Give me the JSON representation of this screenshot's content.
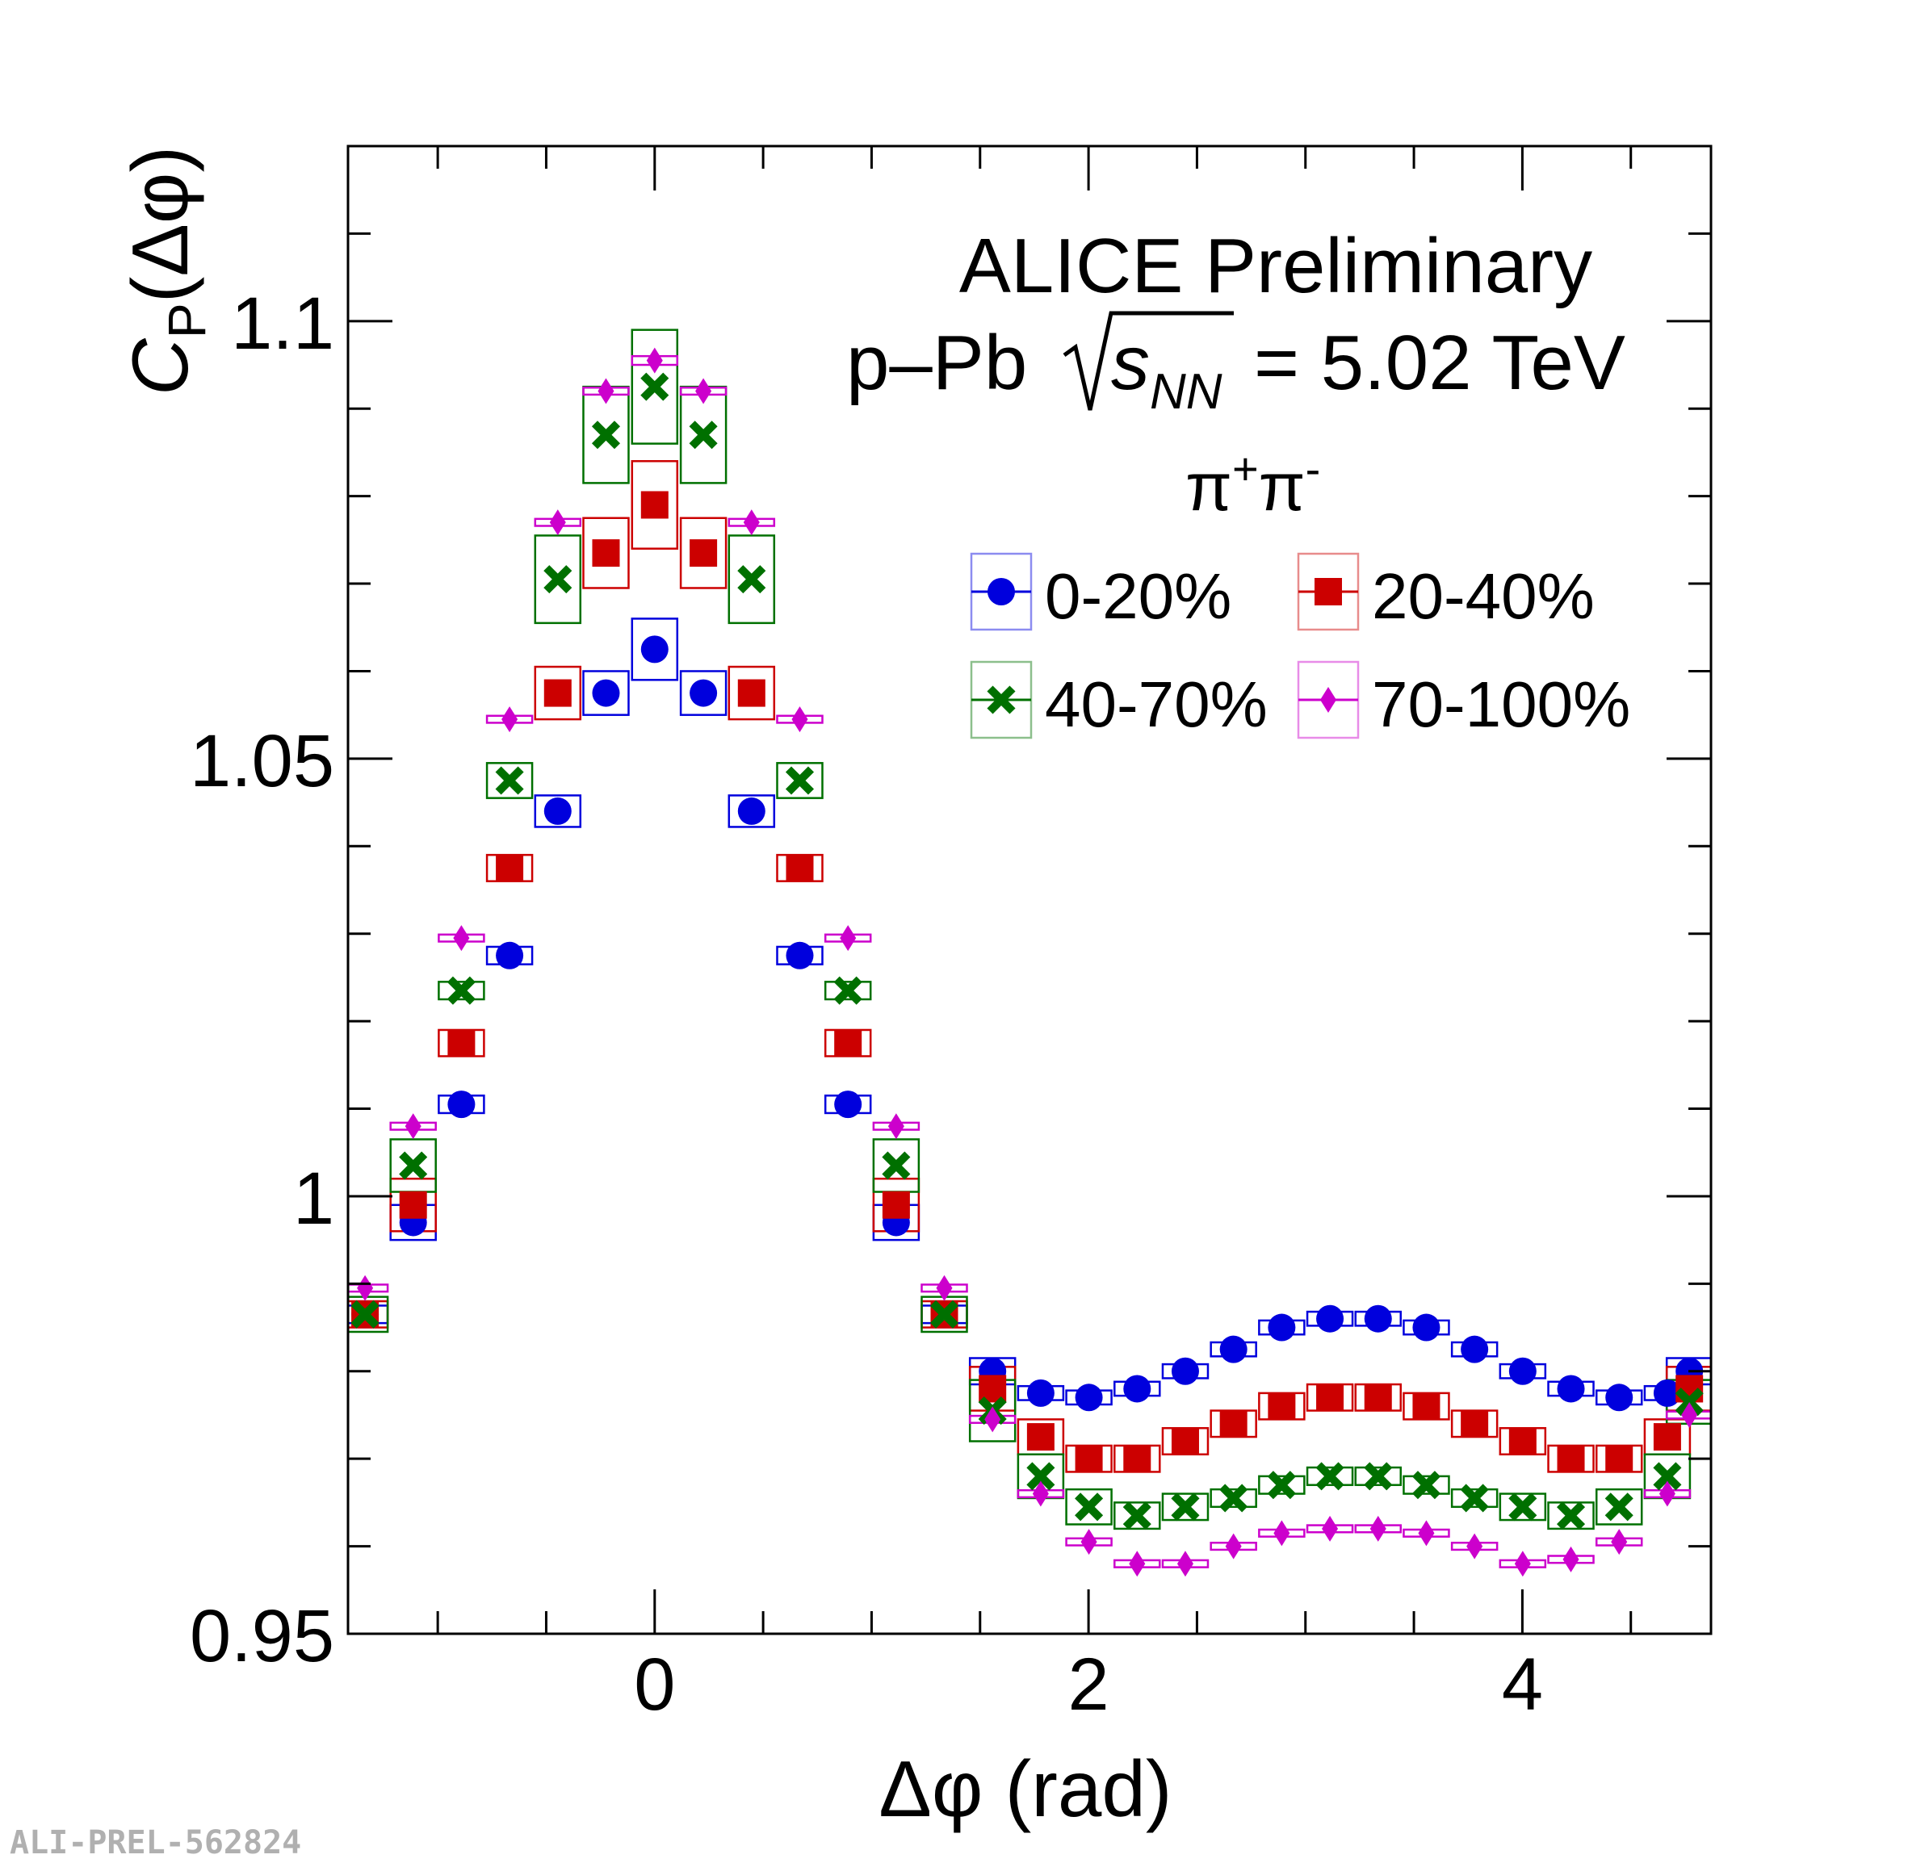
{
  "chart_data": {
    "type": "scatter",
    "title": "ALICE Preliminary",
    "subtitle_prefix": "p–Pb",
    "subtitle_energy": "= 5.02 TeV",
    "sqrt_var": "s",
    "sqrt_sub": "NN",
    "species": {
      "base": "π",
      "sup1": "+",
      "sup2": "-"
    },
    "xlabel": "Δφ (rad)",
    "ylabel": {
      "main": "C",
      "sub": "P",
      "rest": "(Δφ)"
    },
    "xlim": [
      -1.4137,
      4.8695
    ],
    "ylim": [
      0.95,
      1.12
    ],
    "xticks": [
      {
        "v": 0,
        "label": "0"
      },
      {
        "v": 2,
        "label": "2"
      },
      {
        "v": 4,
        "label": "4"
      }
    ],
    "yticks": [
      {
        "v": 0.95,
        "label": "0.95"
      },
      {
        "v": 1.0,
        "label": "1"
      },
      {
        "v": 1.05,
        "label": "1.05"
      },
      {
        "v": 1.1,
        "label": "1.1"
      }
    ],
    "x": [
      -1.3352,
      -1.1133,
      -0.8911,
      -0.6689,
      -0.4467,
      -0.2245,
      0.0,
      0.2245,
      0.4467,
      0.6689,
      0.8911,
      1.1133,
      1.3352,
      1.5574,
      1.7796,
      2.0018,
      2.224,
      2.4462,
      2.6684,
      2.8906,
      3.1128,
      3.335,
      3.5572,
      3.7794,
      4.0016,
      4.2238,
      4.446,
      4.6682,
      4.7697
    ],
    "series": [
      {
        "name": "0-20%",
        "color": "#0000dd",
        "marker": "circle",
        "values": [
          0.9865,
          0.997,
          1.0105,
          1.0275,
          1.044,
          1.0575,
          1.0625,
          1.0575,
          1.044,
          1.0275,
          1.0105,
          0.997,
          0.9865,
          0.98,
          0.9775,
          0.977,
          0.978,
          0.98,
          0.9825,
          0.985,
          0.986,
          0.986,
          0.985,
          0.9825,
          0.98,
          0.978,
          0.977,
          0.9775,
          0.98
        ],
        "sys": [
          0.001,
          0.002,
          0.001,
          0.001,
          0.0018,
          0.0025,
          0.0035,
          0.0025,
          0.0018,
          0.001,
          0.001,
          0.002,
          0.001,
          0.0015,
          0.0008,
          0.0008,
          0.0008,
          0.0008,
          0.0008,
          0.0008,
          0.0008,
          0.0008,
          0.0008,
          0.0008,
          0.0008,
          0.0008,
          0.0008,
          0.0008,
          0.0015
        ]
      },
      {
        "name": "20-40%",
        "color": "#cc0000",
        "marker": "square",
        "values": [
          0.9865,
          0.999,
          1.0175,
          1.0375,
          1.0575,
          1.0735,
          1.079,
          1.0735,
          1.0575,
          1.0375,
          1.0175,
          0.999,
          0.9865,
          0.978,
          0.9725,
          0.97,
          0.97,
          0.972,
          0.974,
          0.976,
          0.977,
          0.977,
          0.976,
          0.974,
          0.972,
          0.97,
          0.97,
          0.9725,
          0.978
        ],
        "sys": [
          0.0015,
          0.003,
          0.0015,
          0.0015,
          0.003,
          0.004,
          0.005,
          0.004,
          0.003,
          0.0015,
          0.0015,
          0.003,
          0.0015,
          0.0025,
          0.002,
          0.0015,
          0.0015,
          0.0015,
          0.0015,
          0.0015,
          0.0015,
          0.0015,
          0.0015,
          0.0015,
          0.0015,
          0.0015,
          0.0015,
          0.002,
          0.0025
        ]
      },
      {
        "name": "40-70%",
        "color": "#007000",
        "marker": "cross",
        "values": [
          0.9865,
          1.0035,
          1.0235,
          1.0475,
          1.0705,
          1.087,
          1.0925,
          1.087,
          1.0705,
          1.0475,
          1.0235,
          1.0035,
          0.9865,
          0.9755,
          0.968,
          0.9645,
          0.9635,
          0.9645,
          0.9655,
          0.967,
          0.968,
          0.968,
          0.967,
          0.9655,
          0.9645,
          0.9635,
          0.9645,
          0.968,
          0.9765
        ],
        "sys": [
          0.002,
          0.003,
          0.001,
          0.002,
          0.005,
          0.0055,
          0.0065,
          0.0055,
          0.005,
          0.002,
          0.001,
          0.003,
          0.002,
          0.0035,
          0.0025,
          0.002,
          0.0015,
          0.0015,
          0.001,
          0.001,
          0.001,
          0.001,
          0.001,
          0.001,
          0.0015,
          0.0015,
          0.002,
          0.0025,
          0.0025
        ]
      },
      {
        "name": "70-100%",
        "color": "#cc00cc",
        "marker": "diamond",
        "values": [
          0.9895,
          1.008,
          1.0295,
          1.0545,
          1.077,
          1.092,
          1.0955,
          1.092,
          1.077,
          1.0545,
          1.0295,
          1.008,
          0.9895,
          0.9745,
          0.966,
          0.9605,
          0.958,
          0.958,
          0.96,
          0.9615,
          0.962,
          0.962,
          0.9615,
          0.96,
          0.958,
          0.9585,
          0.9605,
          0.966,
          0.975
        ],
        "sys": [
          0.0004,
          0.0004,
          0.0004,
          0.0004,
          0.0004,
          0.0004,
          0.0005,
          0.0004,
          0.0004,
          0.0004,
          0.0004,
          0.0004,
          0.0004,
          0.0004,
          0.0004,
          0.0004,
          0.0004,
          0.0004,
          0.0004,
          0.0004,
          0.0004,
          0.0004,
          0.0004,
          0.0004,
          0.0004,
          0.0004,
          0.0004,
          0.0004,
          0.0004
        ]
      }
    ],
    "legend_position": "top-right",
    "grid": false
  },
  "watermark": "ALI-PREL-562824"
}
